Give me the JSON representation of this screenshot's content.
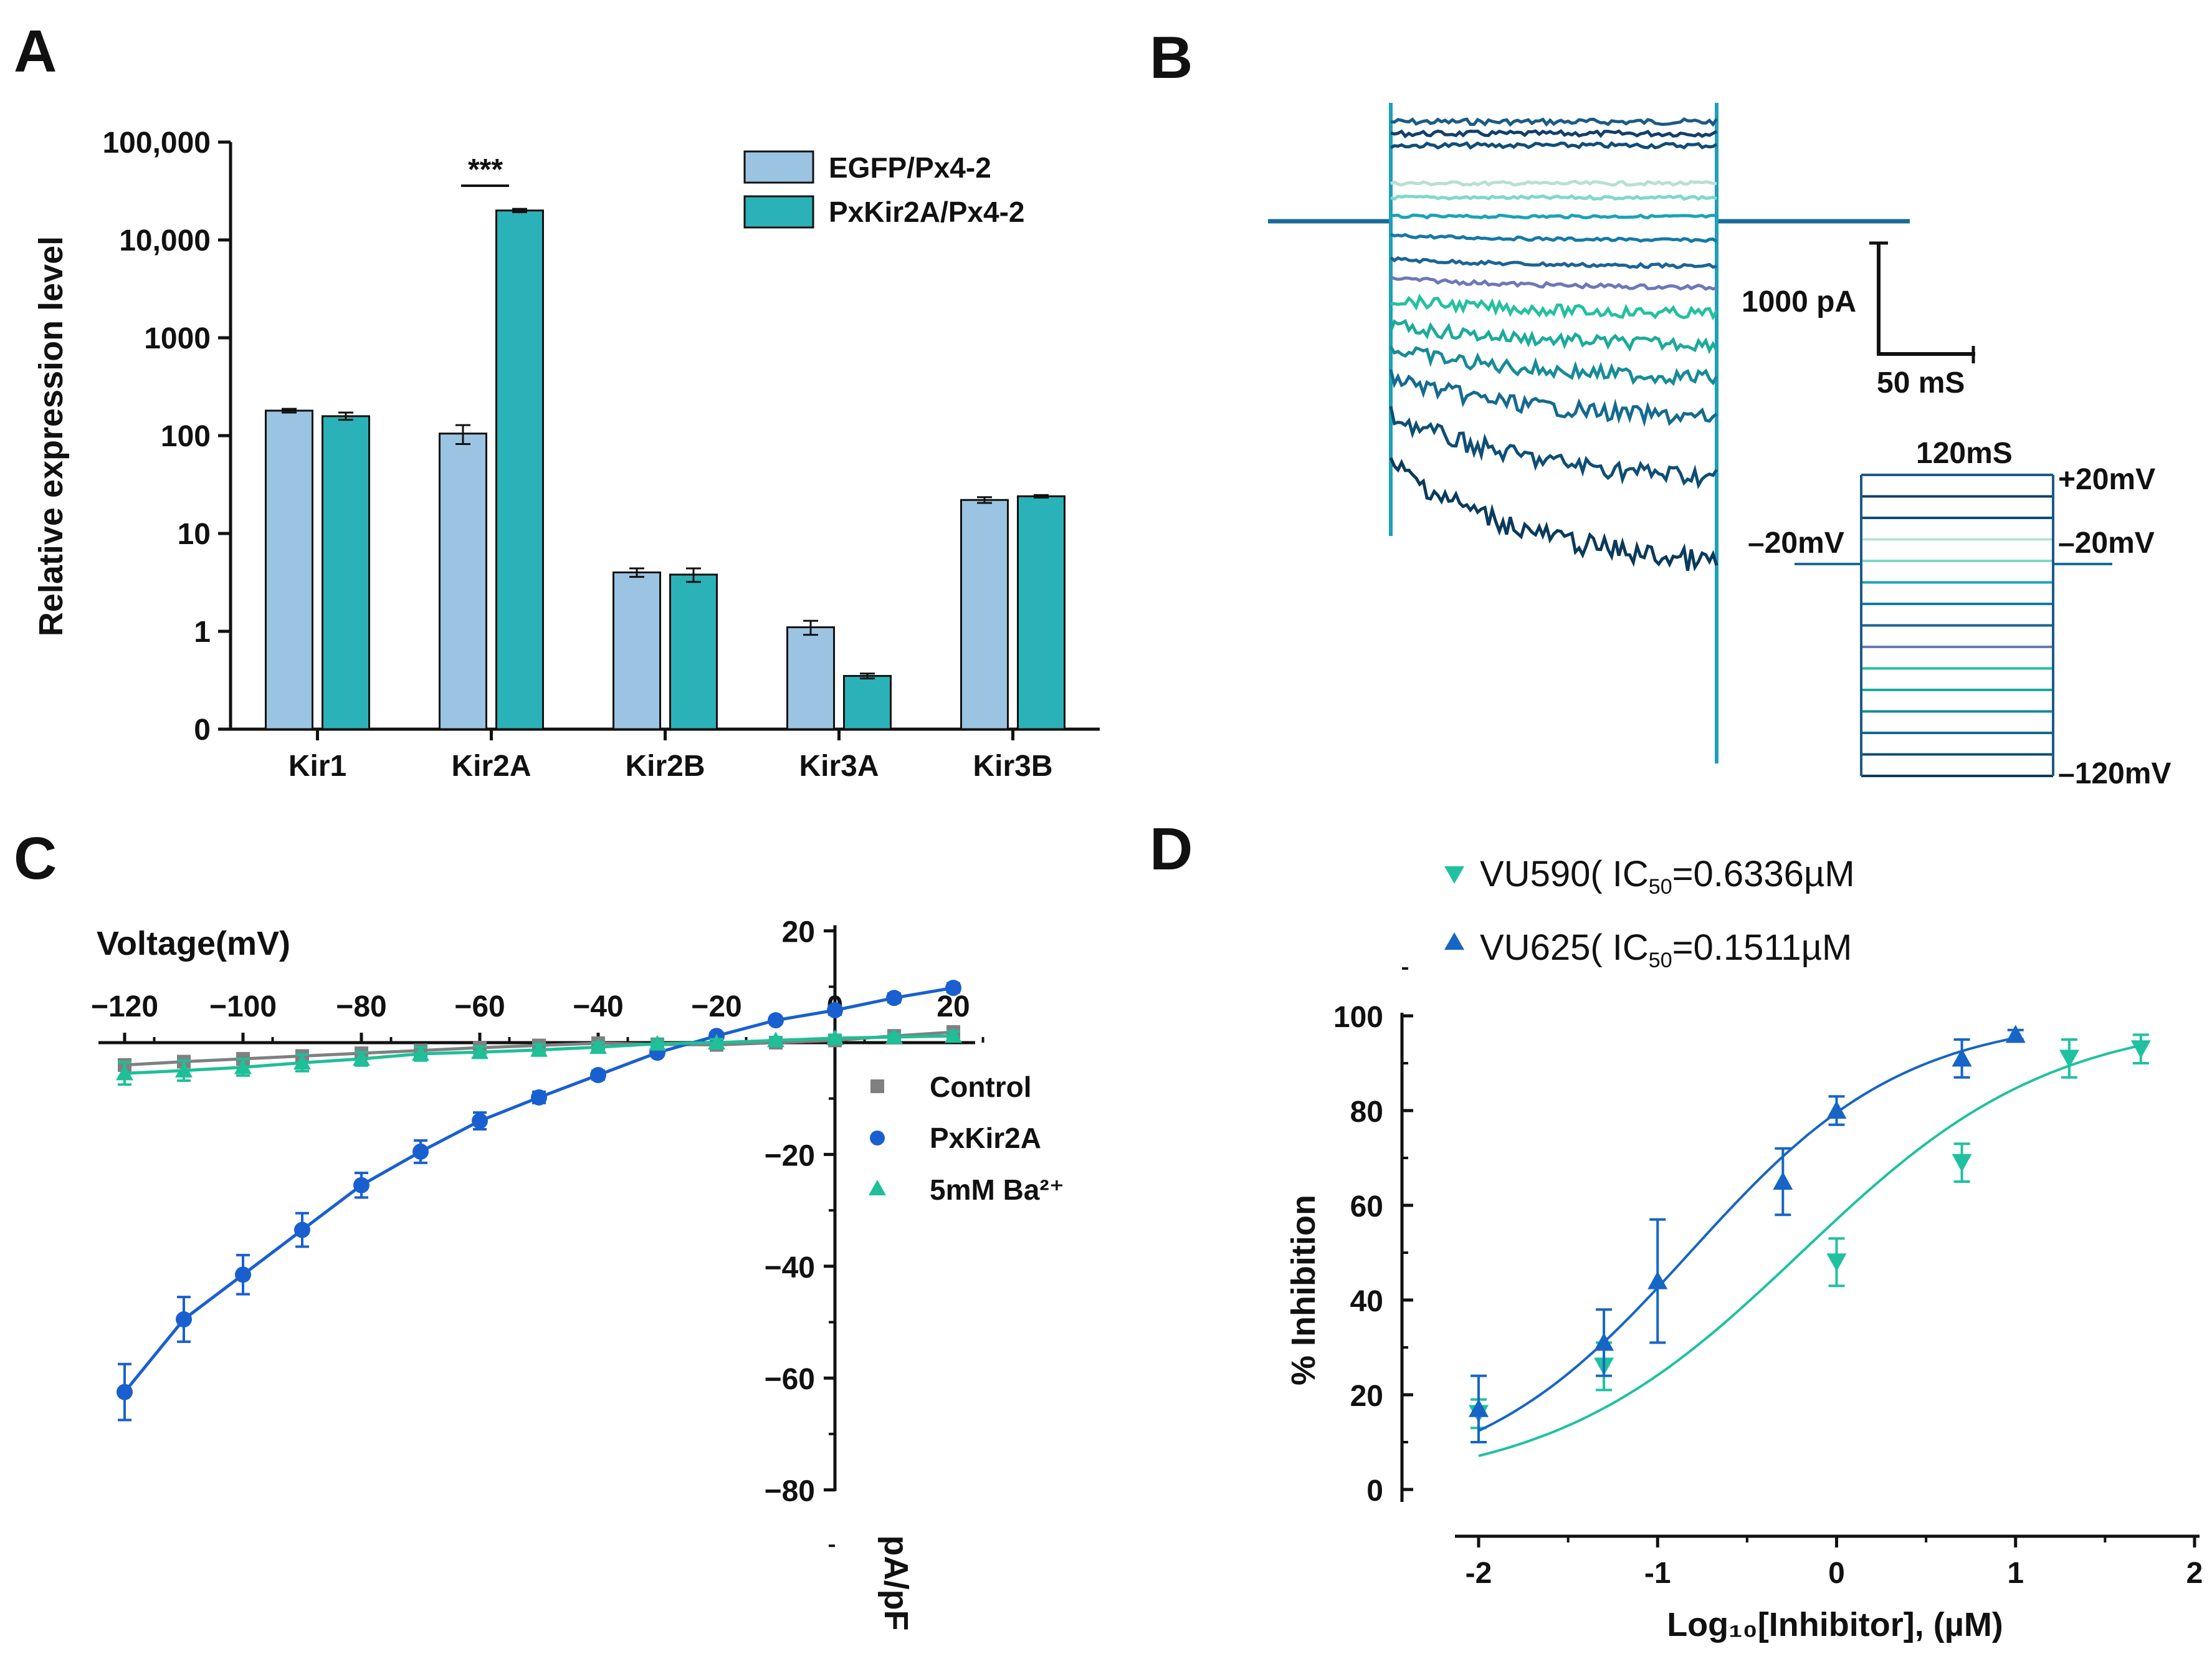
{
  "colors": {
    "egfp": "#9bc4e2",
    "pxkir": "#2ab2b8",
    "control": "#808080",
    "pxkir2a": "#1a5fd0",
    "barium": "#1fbf98",
    "vu590": "#1fc1a0",
    "vu625": "#1765c5",
    "black": "#111111"
  },
  "panels": {
    "A": "A",
    "B": "B",
    "C": "C",
    "D": "D"
  },
  "chart_data": [
    {
      "panel": "A",
      "type": "bar",
      "y_scale": "log",
      "ylabel": "Relative expression level",
      "yticks": [
        "100,000",
        "10,000",
        "1000",
        "100",
        "10",
        "1",
        "0"
      ],
      "ylim_log10": [
        -1,
        5
      ],
      "categories": [
        "Kir1",
        "Kir2A",
        "Kir2B",
        "Kir3A",
        "Kir3B"
      ],
      "series": [
        {
          "name": "EGFP/Px4-2",
          "values": [
            180,
            105,
            4.0,
            1.1,
            22
          ],
          "err_low": [
            172,
            82,
            3.6,
            0.92,
            20.5
          ],
          "err_high": [
            188,
            128,
            4.4,
            1.28,
            23.5
          ]
        },
        {
          "name": "PxKir2A/Px4-2",
          "values": [
            158,
            20000,
            3.8,
            0.35,
            24
          ],
          "err_low": [
            145,
            19200,
            3.2,
            0.33,
            23.3
          ],
          "err_high": [
            172,
            20800,
            4.4,
            0.37,
            24.7
          ]
        }
      ],
      "significance": {
        "label": "***",
        "category": "Kir2A"
      }
    },
    {
      "panel": "B",
      "type": "line",
      "description_labels": {
        "scale_current": "1000 pA",
        "scale_time": "50 mS",
        "protocol_duration": "120mS",
        "v_top": "+20mV",
        "v_hold_left": "–20mV",
        "v_hold_right": "–20mV",
        "v_bottom": "–120mV"
      },
      "steps_mv": [
        20,
        10,
        0,
        -10,
        -20,
        -30,
        -40,
        -50,
        -60,
        -70,
        -80,
        -90,
        -100,
        -110,
        -120
      ],
      "step_colors": [
        "#1a5b86",
        "#123f6b",
        "#0f4d78",
        "#b8e0d0",
        "#7fd8c8",
        "#1aa3b8",
        "#1579a8",
        "#1c6396",
        "#6c78b8",
        "#24c0a0",
        "#1bab9a",
        "#178b98",
        "#146a90",
        "#0e4e74",
        "#0a3a5c"
      ],
      "trace_offsets_pA": [
        420,
        370,
        320,
        160,
        100,
        20,
        -60,
        -160,
        -240,
        -330,
        -440,
        -540,
        -660,
        -820,
        -1020
      ],
      "trace_decay_pA": [
        0,
        0,
        0,
        0,
        0,
        0,
        -20,
        -30,
        -40,
        -60,
        -80,
        -120,
        -170,
        -260,
        -420
      ]
    },
    {
      "panel": "C",
      "type": "line",
      "xlabel": "Voltage(mV)",
      "ylabel": "pA/pF",
      "xlim": [
        -125,
        22
      ],
      "ylim": [
        -80,
        20
      ],
      "xticks": [
        -120,
        -100,
        -80,
        -60,
        -40,
        -20,
        0,
        20
      ],
      "xtick_labels": [
        "−120",
        "−100",
        "−80",
        "−60",
        "−40",
        "−20",
        "0",
        "20"
      ],
      "yticks": [
        20,
        0,
        -20,
        -40,
        -60,
        -80
      ],
      "ytick_labels": [
        "20",
        "0",
        "−20",
        "−40",
        "−60",
        "−80"
      ],
      "x": [
        -120,
        -110,
        -100,
        -90,
        -80,
        -70,
        -60,
        -50,
        -40,
        -30,
        -20,
        -10,
        0,
        10,
        20
      ],
      "series": [
        {
          "name": "Control",
          "marker": "square",
          "values": [
            -4.0,
            -3.4,
            -2.9,
            -2.4,
            -1.9,
            -1.4,
            -0.9,
            -0.5,
            -0.1,
            -0.3,
            -0.4,
            0.0,
            0.4,
            1.2,
            1.9
          ],
          "err": [
            1.0,
            1.0,
            1.0,
            1.0,
            0.9,
            0.9,
            0.8,
            0.8,
            0.8,
            0.7,
            0.6,
            0.6,
            0.6,
            0.7,
            0.8
          ]
        },
        {
          "name": "PxKir2A",
          "marker": "circle",
          "values": [
            -62.5,
            -49.5,
            -41.5,
            -33.5,
            -25.5,
            -19.5,
            -14.0,
            -9.8,
            -5.8,
            -1.8,
            1.2,
            4.0,
            5.8,
            8.0,
            9.8
          ],
          "err": [
            5.0,
            4.0,
            3.5,
            3.0,
            2.2,
            2.0,
            1.5,
            1.0,
            0.8,
            0.6,
            0.6,
            0.6,
            0.8,
            0.8,
            0.8
          ]
        },
        {
          "name": "5mM Ba²⁺",
          "marker": "triangle",
          "values": [
            -5.5,
            -5.0,
            -4.4,
            -3.6,
            -2.9,
            -2.0,
            -1.7,
            -1.3,
            -0.8,
            -0.2,
            0.0,
            0.4,
            0.8,
            1.0,
            1.2
          ],
          "err": [
            2.0,
            1.8,
            1.5,
            1.5,
            1.2,
            1.2,
            1.0,
            1.0,
            0.8,
            0.7,
            0.6,
            0.6,
            0.6,
            0.6,
            0.8
          ]
        }
      ]
    },
    {
      "panel": "D",
      "type": "scatter",
      "xlabel": "Log₁₀[Inhibitor], (µM)",
      "ylabel": "% Inhibition",
      "xlim": [
        -2.1,
        2.0
      ],
      "ylim": [
        -5,
        102
      ],
      "xticks": [
        -2,
        -1,
        0,
        1,
        2
      ],
      "yticks": [
        0,
        20,
        40,
        60,
        80,
        100
      ],
      "series": [
        {
          "name": "VU590",
          "legend_name": "VU590",
          "ic50": "=0.6336µM",
          "marker": "triangle-down",
          "x": [
            -2,
            -1.3,
            0,
            0.7,
            1.3,
            1.7
          ],
          "values": [
            16,
            26,
            48,
            69,
            91,
            93
          ],
          "err": [
            3,
            5,
            5,
            4,
            4,
            3
          ],
          "fit_log_ic50": -0.198,
          "fit_hill": 0.62
        },
        {
          "name": "VU625",
          "legend_name": "VU625",
          "ic50": "=0.1511µM",
          "marker": "triangle-up",
          "x": [
            -2,
            -1.3,
            -1,
            -0.3,
            0,
            0.7,
            1
          ],
          "values": [
            17,
            31,
            44,
            65,
            80,
            91,
            96
          ],
          "err": [
            7,
            7,
            13,
            7,
            3,
            4,
            1
          ],
          "fit_log_ic50": -0.82,
          "fit_hill": 0.72
        }
      ]
    }
  ]
}
